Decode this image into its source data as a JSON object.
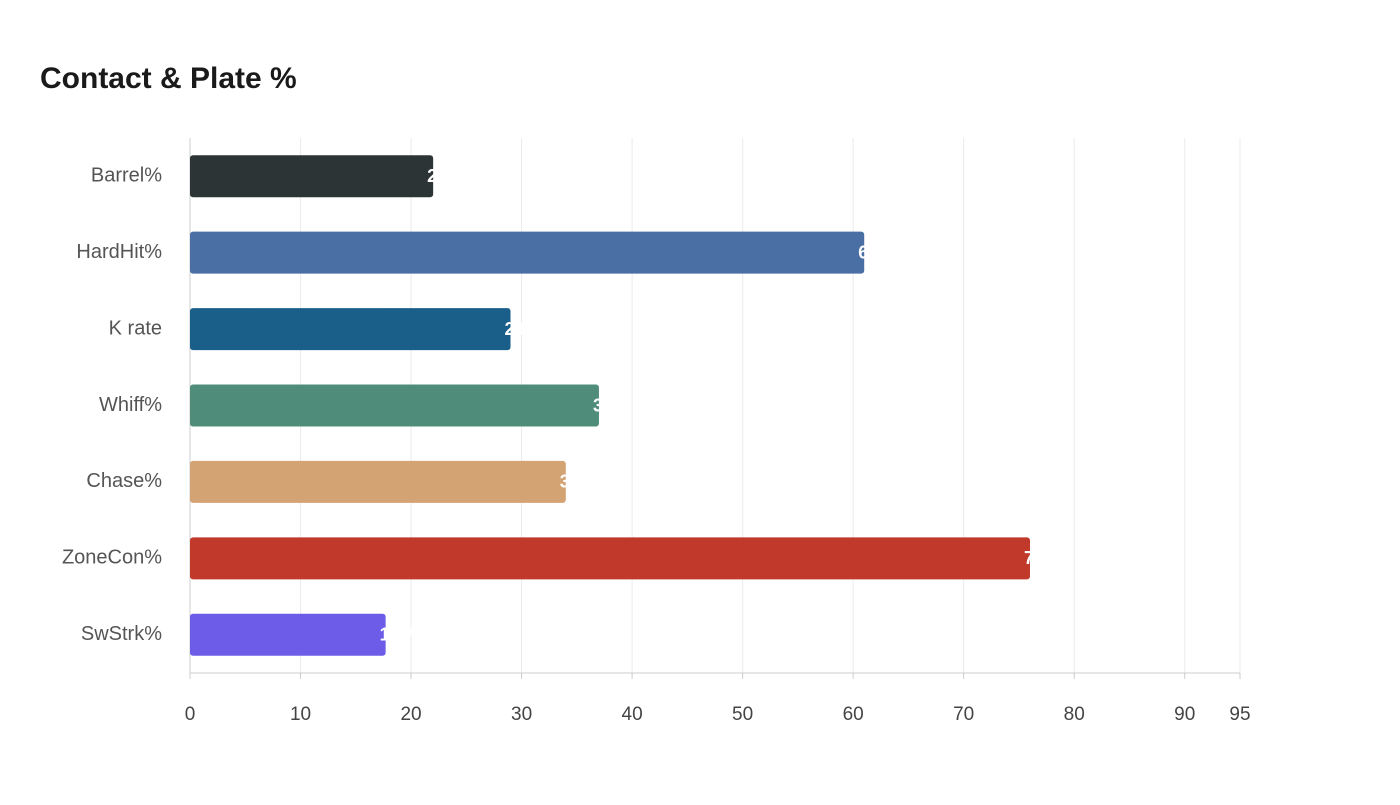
{
  "chart_data": {
    "type": "bar",
    "orientation": "horizontal",
    "title": "Contact & Plate %",
    "categories": [
      "Barrel%",
      "HardHit%",
      "K rate",
      "Whiff%",
      "Chase%",
      "ZoneCon%",
      "SwStrk%"
    ],
    "values": [
      22,
      61,
      29,
      37,
      34,
      76,
      17.7
    ],
    "colors": [
      "#2d3436",
      "#4a6fa5",
      "#1a5f8a",
      "#4f8c7a",
      "#d4a373",
      "#c0392b",
      "#6c5ce7"
    ],
    "xlim": [
      0,
      95
    ],
    "xticks": [
      0,
      10,
      20,
      30,
      40,
      50,
      60,
      70,
      80,
      90,
      95
    ],
    "grid": true
  }
}
